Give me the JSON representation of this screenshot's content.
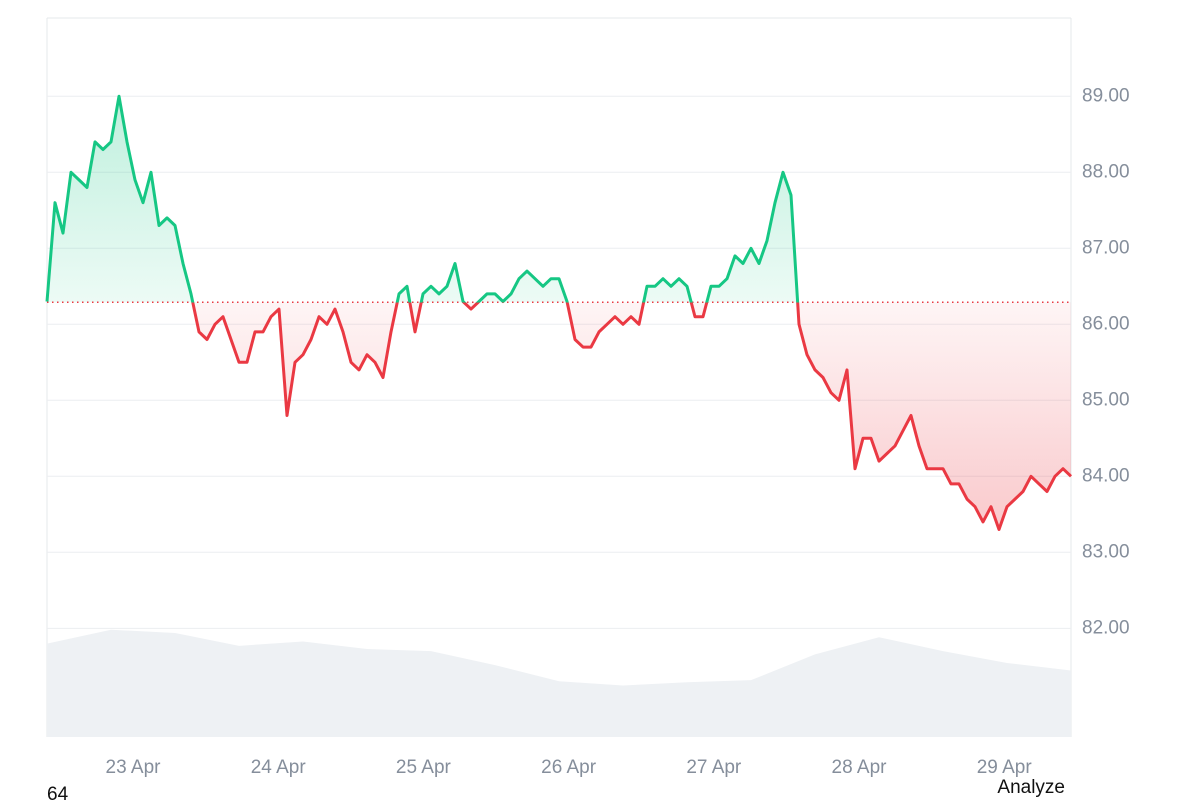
{
  "chart_data": {
    "type": "baseline",
    "series": [
      {
        "name": "price",
        "color_up": "#16c784",
        "color_down": "#ea3943",
        "values": [
          86.3,
          87.6,
          87.2,
          88.0,
          87.9,
          87.8,
          88.4,
          88.3,
          88.4,
          89.0,
          88.4,
          87.9,
          87.6,
          88.0,
          87.3,
          87.4,
          87.3,
          86.8,
          86.4,
          85.9,
          85.8,
          86.0,
          86.1,
          85.8,
          85.5,
          85.5,
          85.9,
          85.9,
          86.1,
          86.2,
          84.8,
          85.5,
          85.6,
          85.8,
          86.1,
          86.0,
          86.2,
          85.9,
          85.5,
          85.4,
          85.6,
          85.5,
          85.3,
          85.9,
          86.4,
          86.5,
          85.9,
          86.4,
          86.5,
          86.4,
          86.5,
          86.8,
          86.3,
          86.2,
          86.3,
          86.4,
          86.4,
          86.3,
          86.4,
          86.6,
          86.7,
          86.6,
          86.5,
          86.6,
          86.6,
          86.3,
          85.8,
          85.7,
          85.7,
          85.9,
          86.0,
          86.1,
          86.0,
          86.1,
          86.0,
          86.5,
          86.5,
          86.6,
          86.5,
          86.6,
          86.5,
          86.1,
          86.1,
          86.5,
          86.5,
          86.6,
          86.9,
          86.8,
          87.0,
          86.8,
          87.1,
          87.6,
          88.0,
          87.7,
          86.0,
          85.6,
          85.4,
          85.3,
          85.1,
          85.0,
          85.4,
          84.1,
          84.5,
          84.5,
          84.2,
          84.3,
          84.4,
          84.6,
          84.8,
          84.4,
          84.1,
          84.1,
          84.1,
          83.9,
          83.9,
          83.7,
          83.6,
          83.4,
          83.6,
          83.3,
          83.6,
          83.7,
          83.8,
          84.0,
          83.9,
          83.8,
          84.0,
          84.1,
          84.0
        ]
      }
    ],
    "baseline": 86.29,
    "baseline_color": "#ea3943",
    "xlim": [
      0,
      128
    ],
    "xticks": [
      {
        "value": 10.75,
        "label": "23 Apr"
      },
      {
        "value": 28.9,
        "label": "24 Apr"
      },
      {
        "value": 47.05,
        "label": "25 Apr"
      },
      {
        "value": 65.2,
        "label": "26 Apr"
      },
      {
        "value": 83.35,
        "label": "27 Apr"
      },
      {
        "value": 101.5,
        "label": "28 Apr"
      },
      {
        "value": 119.65,
        "label": "29 Apr"
      }
    ],
    "ylim": [
      80.57,
      90.03
    ],
    "yticks": [
      {
        "value": 82,
        "label": "82.00"
      },
      {
        "value": 83,
        "label": "83.00"
      },
      {
        "value": 84,
        "label": "84.00"
      },
      {
        "value": 85,
        "label": "85.00"
      },
      {
        "value": 86,
        "label": "86.00"
      },
      {
        "value": 87,
        "label": "87.00"
      },
      {
        "value": 88,
        "label": "88.00"
      },
      {
        "value": 89,
        "label": "89.00"
      }
    ],
    "grid": true,
    "volume": {
      "color": "#eef1f4",
      "vlim": [
        0,
        110
      ],
      "values": [
        87,
        100,
        97,
        85,
        89,
        82,
        80,
        67,
        52,
        48,
        51,
        53,
        77,
        93,
        80,
        69,
        62
      ]
    }
  },
  "footer_left": "64",
  "action": "Analyze"
}
